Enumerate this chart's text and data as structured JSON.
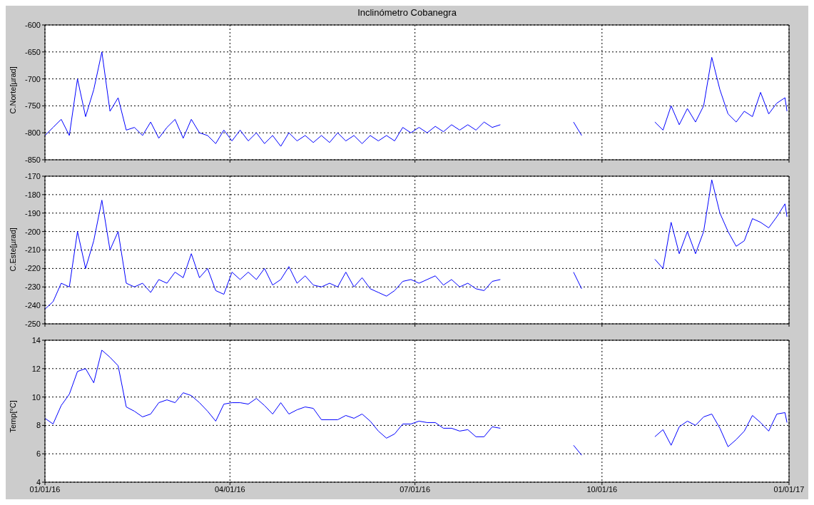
{
  "chart_data": [
    {
      "type": "line",
      "title": "Inclinómetro Cobanegra",
      "ylabel": "C.Norte[µrad]",
      "x": [
        "2016-01-01",
        "2016-01-05",
        "2016-01-09",
        "2016-01-13",
        "2016-01-17",
        "2016-01-21",
        "2016-01-25",
        "2016-01-29",
        "2016-02-02",
        "2016-02-06",
        "2016-02-10",
        "2016-02-14",
        "2016-02-18",
        "2016-02-22",
        "2016-02-26",
        "2016-03-01",
        "2016-03-05",
        "2016-03-09",
        "2016-03-13",
        "2016-03-17",
        "2016-03-21",
        "2016-03-25",
        "2016-03-29",
        "2016-04-02",
        "2016-04-06",
        "2016-04-10",
        "2016-04-14",
        "2016-04-18",
        "2016-04-22",
        "2016-04-26",
        "2016-04-30",
        "2016-05-04",
        "2016-05-08",
        "2016-05-12",
        "2016-05-16",
        "2016-05-20",
        "2016-05-24",
        "2016-05-28",
        "2016-06-01",
        "2016-06-05",
        "2016-06-09",
        "2016-06-13",
        "2016-06-17",
        "2016-06-21",
        "2016-06-25",
        "2016-06-29",
        "2016-07-03",
        "2016-07-07",
        "2016-07-11",
        "2016-07-15",
        "2016-07-19",
        "2016-07-23",
        "2016-07-27",
        "2016-07-31",
        "2016-08-04",
        "2016-08-08",
        "2016-08-12",
        "2016-08-16",
        "2016-08-20",
        "2016-08-24",
        "2016-08-28",
        "2016-09-01",
        "2016-09-05",
        "2016-09-09",
        "2016-09-13",
        "2016-09-17",
        "2016-09-21",
        "2016-09-25",
        "2016-09-29",
        "2016-10-03",
        "2016-10-07",
        "2016-10-11",
        "2016-10-15",
        "2016-10-19",
        "2016-10-23",
        "2016-10-27",
        "2016-10-31",
        "2016-11-04",
        "2016-11-08",
        "2016-11-12",
        "2016-11-16",
        "2016-11-20",
        "2016-11-24",
        "2016-11-28",
        "2016-12-02",
        "2016-12-06",
        "2016-12-10",
        "2016-12-14",
        "2016-12-18",
        "2016-12-22",
        "2016-12-26",
        "2016-12-30",
        "2016-12-31"
      ],
      "series": [
        {
          "color": "#0000ff",
          "values": [
            -805,
            -790,
            -775,
            -805,
            -700,
            -770,
            -720,
            -650,
            -760,
            -735,
            -795,
            -790,
            -805,
            -780,
            -810,
            -790,
            -775,
            -810,
            -775,
            -800,
            -805,
            -820,
            -795,
            -815,
            -795,
            -815,
            -800,
            -820,
            -805,
            -825,
            -800,
            -815,
            -805,
            -818,
            -805,
            -818,
            -800,
            -815,
            -805,
            -820,
            -805,
            -815,
            -805,
            -815,
            -790,
            -800,
            -790,
            -800,
            -788,
            -798,
            -785,
            -795,
            -785,
            -795,
            -780,
            -790,
            -785,
            null,
            null,
            null,
            null,
            null,
            null,
            null,
            null,
            -780,
            -805,
            null,
            null,
            null,
            null,
            null,
            null,
            null,
            null,
            -780,
            -795,
            -750,
            -785,
            -755,
            -780,
            -750,
            -660,
            -720,
            -765,
            -780,
            -760,
            -770,
            -725,
            -765,
            -745,
            -735,
            -760
          ]
        }
      ],
      "xlim": [
        "2016-01-01",
        "2017-01-01"
      ],
      "xticks": [
        {
          "value": "2016-01-01",
          "label": null
        },
        {
          "value": "2016-04-01",
          "label": null
        },
        {
          "value": "2016-07-01",
          "label": null
        },
        {
          "value": "2016-10-01",
          "label": null
        },
        {
          "value": "2017-01-01",
          "label": null
        }
      ],
      "ylim": [
        -850,
        -600
      ],
      "yticks": [
        -850,
        -800,
        -750,
        -700,
        -650,
        -600
      ],
      "grid": true,
      "tick_labels": "y"
    },
    {
      "type": "line",
      "ylabel": "C.Este[µrad]",
      "x": [
        "2016-01-01",
        "2016-01-05",
        "2016-01-09",
        "2016-01-13",
        "2016-01-17",
        "2016-01-21",
        "2016-01-25",
        "2016-01-29",
        "2016-02-02",
        "2016-02-06",
        "2016-02-10",
        "2016-02-14",
        "2016-02-18",
        "2016-02-22",
        "2016-02-26",
        "2016-03-01",
        "2016-03-05",
        "2016-03-09",
        "2016-03-13",
        "2016-03-17",
        "2016-03-21",
        "2016-03-25",
        "2016-03-29",
        "2016-04-02",
        "2016-04-06",
        "2016-04-10",
        "2016-04-14",
        "2016-04-18",
        "2016-04-22",
        "2016-04-26",
        "2016-04-30",
        "2016-05-04",
        "2016-05-08",
        "2016-05-12",
        "2016-05-16",
        "2016-05-20",
        "2016-05-24",
        "2016-05-28",
        "2016-06-01",
        "2016-06-05",
        "2016-06-09",
        "2016-06-13",
        "2016-06-17",
        "2016-06-21",
        "2016-06-25",
        "2016-06-29",
        "2016-07-03",
        "2016-07-07",
        "2016-07-11",
        "2016-07-15",
        "2016-07-19",
        "2016-07-23",
        "2016-07-27",
        "2016-07-31",
        "2016-08-04",
        "2016-08-08",
        "2016-08-12",
        "2016-08-16",
        "2016-08-20",
        "2016-08-24",
        "2016-08-28",
        "2016-09-01",
        "2016-09-05",
        "2016-09-09",
        "2016-09-13",
        "2016-09-17",
        "2016-09-21",
        "2016-09-25",
        "2016-09-29",
        "2016-10-03",
        "2016-10-07",
        "2016-10-11",
        "2016-10-15",
        "2016-10-19",
        "2016-10-23",
        "2016-10-27",
        "2016-10-31",
        "2016-11-04",
        "2016-11-08",
        "2016-11-12",
        "2016-11-16",
        "2016-11-20",
        "2016-11-24",
        "2016-11-28",
        "2016-12-02",
        "2016-12-06",
        "2016-12-10",
        "2016-12-14",
        "2016-12-18",
        "2016-12-22",
        "2016-12-26",
        "2016-12-30",
        "2016-12-31"
      ],
      "series": [
        {
          "color": "#0000ff",
          "values": [
            -242,
            -238,
            -228,
            -230,
            -200,
            -220,
            -205,
            -183,
            -210,
            -200,
            -228,
            -230,
            -228,
            -233,
            -226,
            -228,
            -222,
            -225,
            -212,
            -225,
            -220,
            -232,
            -234,
            -222,
            -226,
            -222,
            -226,
            -220,
            -229,
            -226,
            -219,
            -228,
            -224,
            -229,
            -230,
            -228,
            -230,
            -222,
            -230,
            -225,
            -231,
            -233,
            -235,
            -232,
            -227,
            -226,
            -228,
            -226,
            -224,
            -229,
            -226,
            -230,
            -228,
            -231,
            -232,
            -227,
            -226,
            null,
            null,
            null,
            null,
            null,
            null,
            null,
            null,
            -222,
            -231,
            null,
            null,
            null,
            null,
            null,
            null,
            null,
            null,
            -215,
            -220,
            -195,
            -212,
            -200,
            -212,
            -200,
            -172,
            -190,
            -200,
            -208,
            -205,
            -193,
            -195,
            -198,
            -192,
            -185,
            -192
          ]
        }
      ],
      "xlim": [
        "2016-01-01",
        "2017-01-01"
      ],
      "xticks": [
        {
          "value": "2016-01-01",
          "label": null
        },
        {
          "value": "2016-04-01",
          "label": null
        },
        {
          "value": "2016-07-01",
          "label": null
        },
        {
          "value": "2016-10-01",
          "label": null
        },
        {
          "value": "2017-01-01",
          "label": null
        }
      ],
      "ylim": [
        -250,
        -170
      ],
      "yticks": [
        -250,
        -240,
        -230,
        -220,
        -210,
        -200,
        -190,
        -180,
        -170
      ],
      "grid": true,
      "tick_labels": "y"
    },
    {
      "type": "line",
      "ylabel": "Temp[°C]",
      "x": [
        "2016-01-01",
        "2016-01-05",
        "2016-01-09",
        "2016-01-13",
        "2016-01-17",
        "2016-01-21",
        "2016-01-25",
        "2016-01-29",
        "2016-02-02",
        "2016-02-06",
        "2016-02-10",
        "2016-02-14",
        "2016-02-18",
        "2016-02-22",
        "2016-02-26",
        "2016-03-01",
        "2016-03-05",
        "2016-03-09",
        "2016-03-13",
        "2016-03-17",
        "2016-03-21",
        "2016-03-25",
        "2016-03-29",
        "2016-04-02",
        "2016-04-06",
        "2016-04-10",
        "2016-04-14",
        "2016-04-18",
        "2016-04-22",
        "2016-04-26",
        "2016-04-30",
        "2016-05-04",
        "2016-05-08",
        "2016-05-12",
        "2016-05-16",
        "2016-05-20",
        "2016-05-24",
        "2016-05-28",
        "2016-06-01",
        "2016-06-05",
        "2016-06-09",
        "2016-06-13",
        "2016-06-17",
        "2016-06-21",
        "2016-06-25",
        "2016-06-29",
        "2016-07-03",
        "2016-07-07",
        "2016-07-11",
        "2016-07-15",
        "2016-07-19",
        "2016-07-23",
        "2016-07-27",
        "2016-07-31",
        "2016-08-04",
        "2016-08-08",
        "2016-08-12",
        "2016-08-16",
        "2016-08-20",
        "2016-08-24",
        "2016-08-28",
        "2016-09-01",
        "2016-09-05",
        "2016-09-09",
        "2016-09-13",
        "2016-09-17",
        "2016-09-21",
        "2016-09-25",
        "2016-09-29",
        "2016-10-03",
        "2016-10-07",
        "2016-10-11",
        "2016-10-15",
        "2016-10-19",
        "2016-10-23",
        "2016-10-27",
        "2016-10-31",
        "2016-11-04",
        "2016-11-08",
        "2016-11-12",
        "2016-11-16",
        "2016-11-20",
        "2016-11-24",
        "2016-11-28",
        "2016-12-02",
        "2016-12-06",
        "2016-12-10",
        "2016-12-14",
        "2016-12-18",
        "2016-12-22",
        "2016-12-26",
        "2016-12-30",
        "2016-12-31"
      ],
      "series": [
        {
          "color": "#0000ff",
          "values": [
            8.5,
            8.1,
            9.4,
            10.2,
            11.8,
            12.0,
            11.0,
            13.3,
            12.8,
            12.2,
            9.3,
            9.0,
            8.6,
            8.8,
            9.6,
            9.8,
            9.6,
            10.3,
            10.1,
            9.6,
            9.0,
            8.3,
            9.5,
            9.6,
            9.6,
            9.5,
            9.9,
            9.4,
            8.8,
            9.6,
            8.8,
            9.1,
            9.3,
            9.2,
            8.4,
            8.4,
            8.4,
            8.7,
            8.5,
            8.8,
            8.3,
            7.6,
            7.1,
            7.4,
            8.1,
            8.1,
            8.3,
            8.2,
            8.2,
            7.8,
            7.8,
            7.6,
            7.7,
            7.2,
            7.2,
            7.9,
            7.8,
            null,
            null,
            null,
            null,
            null,
            null,
            null,
            null,
            6.6,
            5.9,
            null,
            null,
            null,
            null,
            null,
            null,
            null,
            null,
            7.2,
            7.7,
            6.6,
            7.9,
            8.3,
            8.0,
            8.6,
            8.8,
            7.8,
            6.5,
            7.0,
            7.6,
            8.7,
            8.2,
            7.6,
            8.8,
            8.9,
            8.2
          ]
        }
      ],
      "xlim": [
        "2016-01-01",
        "2017-01-01"
      ],
      "xticks": [
        {
          "value": "2016-01-01",
          "label": "01/01/16"
        },
        {
          "value": "2016-04-01",
          "label": "04/01/16"
        },
        {
          "value": "2016-07-01",
          "label": "07/01/16"
        },
        {
          "value": "2016-10-01",
          "label": "10/01/16"
        },
        {
          "value": "2017-01-01",
          "label": "01/01/17"
        }
      ],
      "ylim": [
        4,
        14
      ],
      "yticks": [
        4,
        6,
        8,
        10,
        12,
        14
      ],
      "grid": true
    }
  ]
}
